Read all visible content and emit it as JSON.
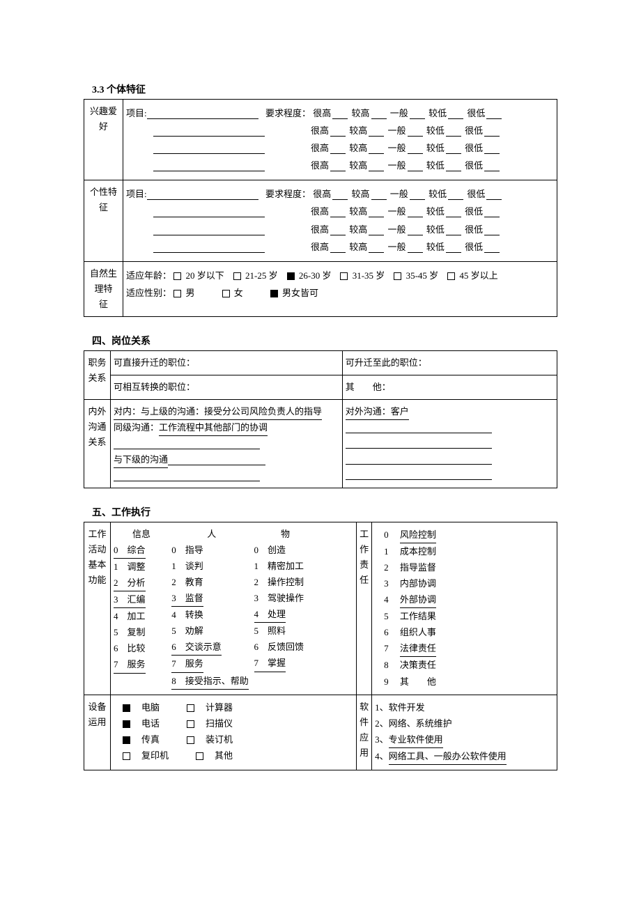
{
  "s33": {
    "title": "3.3  个体特征",
    "interest_label": "兴趣爱好",
    "personality_label": "个性特征",
    "project_label": "项目:",
    "degree_label": "要求程度：",
    "ratings": [
      "很高",
      "较高",
      "一般",
      "较低",
      "很低"
    ],
    "nature": {
      "label": "自然生理特　征",
      "age_label": "适应年龄：",
      "ages": [
        "20 岁以下",
        "21-25 岁",
        "26-30 岁",
        "31-35 岁",
        "35-45 岁",
        "45 岁以上"
      ],
      "age_checked": [
        false,
        false,
        true,
        false,
        false,
        false
      ],
      "gender_label": "适应性别：",
      "genders": [
        "男",
        "女",
        "男女皆可"
      ],
      "gender_checked": [
        false,
        false,
        true
      ]
    }
  },
  "s4": {
    "title": "四、岗位关系",
    "position": {
      "label": "职务关系",
      "promote_to": "可直接升迁的职位：",
      "promote_from": "可升迁至此的职位：",
      "switch": "可相互转换的职位：",
      "other": "其　　他："
    },
    "comm": {
      "label": "内外沟通关系",
      "internal_prefix": "对内：与上级的沟通：",
      "internal_text": "接受分公司风险负责人的指导",
      "peer_prefix": "同级沟通：",
      "peer_text": "工作流程中其他部门的协调",
      "down_prefix": "与下级的沟通",
      "external_prefix": "对外沟通：",
      "external_text": "客户"
    }
  },
  "s5": {
    "title": "五、工作执行",
    "activity": {
      "label": "工作活动基本功能",
      "headers": [
        "信息",
        "人",
        "物"
      ],
      "info": [
        "综合",
        "调整",
        "分析",
        "汇编",
        "加工",
        "复制",
        "比较",
        "服务"
      ],
      "info_u": [
        true,
        false,
        true,
        true,
        false,
        false,
        false,
        true
      ],
      "people": [
        "指导",
        "谈判",
        "教育",
        "监督",
        "转换",
        "劝解",
        "交谈示意",
        "服务",
        "接受指示、帮助"
      ],
      "people_u": [
        false,
        false,
        false,
        true,
        false,
        false,
        true,
        true,
        true
      ],
      "thing": [
        "创造",
        "精密加工",
        "操作控制",
        "驾驶操作",
        "处理",
        "照料",
        "反馈回馈",
        "掌握"
      ],
      "thing_u": [
        false,
        false,
        false,
        false,
        true,
        false,
        false,
        true
      ]
    },
    "resp": {
      "label": "工作责任",
      "items": [
        "风险控制",
        "成本控制",
        "指导监督",
        "内部协调",
        "外部协调",
        "工作结果",
        "组织人事",
        "法律责任",
        "决策责任",
        "其　　他"
      ],
      "underlined": [
        true,
        false,
        false,
        false,
        true,
        false,
        false,
        true,
        false,
        false
      ]
    },
    "equip": {
      "label": "设备运用",
      "left": [
        "电脑",
        "电话",
        "传真",
        "复印机"
      ],
      "left_checked": [
        true,
        true,
        true,
        false
      ],
      "right": [
        "计算器",
        "扫描仪",
        "装订机",
        "其他"
      ],
      "right_checked": [
        false,
        false,
        false,
        false
      ]
    },
    "software": {
      "label": "软件应用",
      "items": [
        "软件开发",
        "网络、系统维护",
        "专业软件使用",
        "网络工具、一般办公软件使用"
      ],
      "underlined": [
        false,
        false,
        true,
        true
      ]
    }
  }
}
